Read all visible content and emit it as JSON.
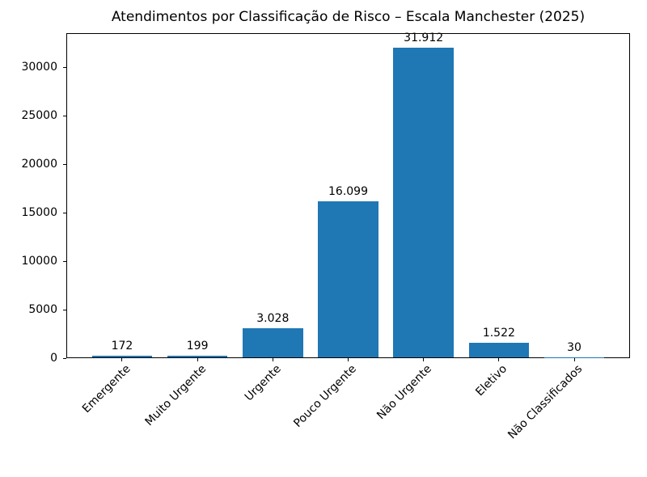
{
  "chart_data": {
    "type": "bar",
    "title": "Atendimentos por Classificação de Risco – Escala Manchester (2025)",
    "categories": [
      "Emergente",
      "Muito Urgente",
      "Urgente",
      "Pouco Urgente",
      "Não Urgente",
      "Eletivo",
      "Não Classificados"
    ],
    "values": [
      172,
      199,
      3028,
      16099,
      31912,
      1522,
      30
    ],
    "value_labels": [
      "172",
      "199",
      "3.028",
      "16.099",
      "31.912",
      "1.522",
      "30"
    ],
    "bar_color": "#1f77b4",
    "xlabel": "",
    "ylabel": "",
    "ylim": [
      0,
      33508
    ],
    "yticks": [
      0,
      5000,
      10000,
      15000,
      20000,
      25000,
      30000
    ],
    "bar_width_fraction": 0.8,
    "x_margin_fraction": 0.05,
    "x_tick_rotation": 45,
    "grid": false,
    "legend": "none",
    "text_color": "#000000",
    "spine_color": "#000000",
    "background_color": "#ffffff"
  }
}
